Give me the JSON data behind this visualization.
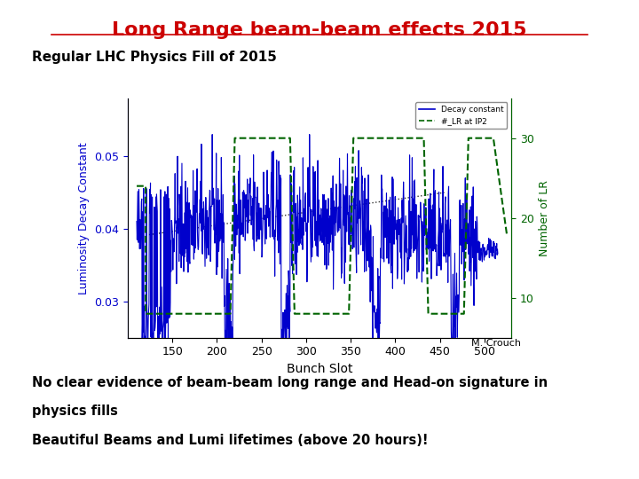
{
  "title": "Long Range beam-beam effects 2015",
  "subtitle": "Regular LHC Physics Fill of 2015",
  "xlabel": "Bunch Slot",
  "ylabel_left": "Luminosity Decay Constant",
  "ylabel_right": "Number of LR",
  "author": "M. Crouch",
  "bottom_text": [
    "No clear evidence of beam-beam long range and Head-on signature in",
    "physics fills",
    "Beautiful Beams and Lumi lifetimes (above 20 hours)!"
  ],
  "legend_entries": [
    "Decay constant",
    "#_LR at IP2"
  ],
  "title_color": "#cc0000",
  "left_axis_color": "#0000cc",
  "right_axis_color": "#006400",
  "ylim_left": [
    0.025,
    0.058
  ],
  "ylim_right": [
    5,
    35
  ],
  "xlim": [
    100,
    530
  ],
  "yticks_left": [
    0.03,
    0.04,
    0.05
  ],
  "yticks_right": [
    10,
    20,
    30
  ],
  "xticks": [
    150,
    200,
    250,
    300,
    350,
    400,
    450,
    500
  ]
}
